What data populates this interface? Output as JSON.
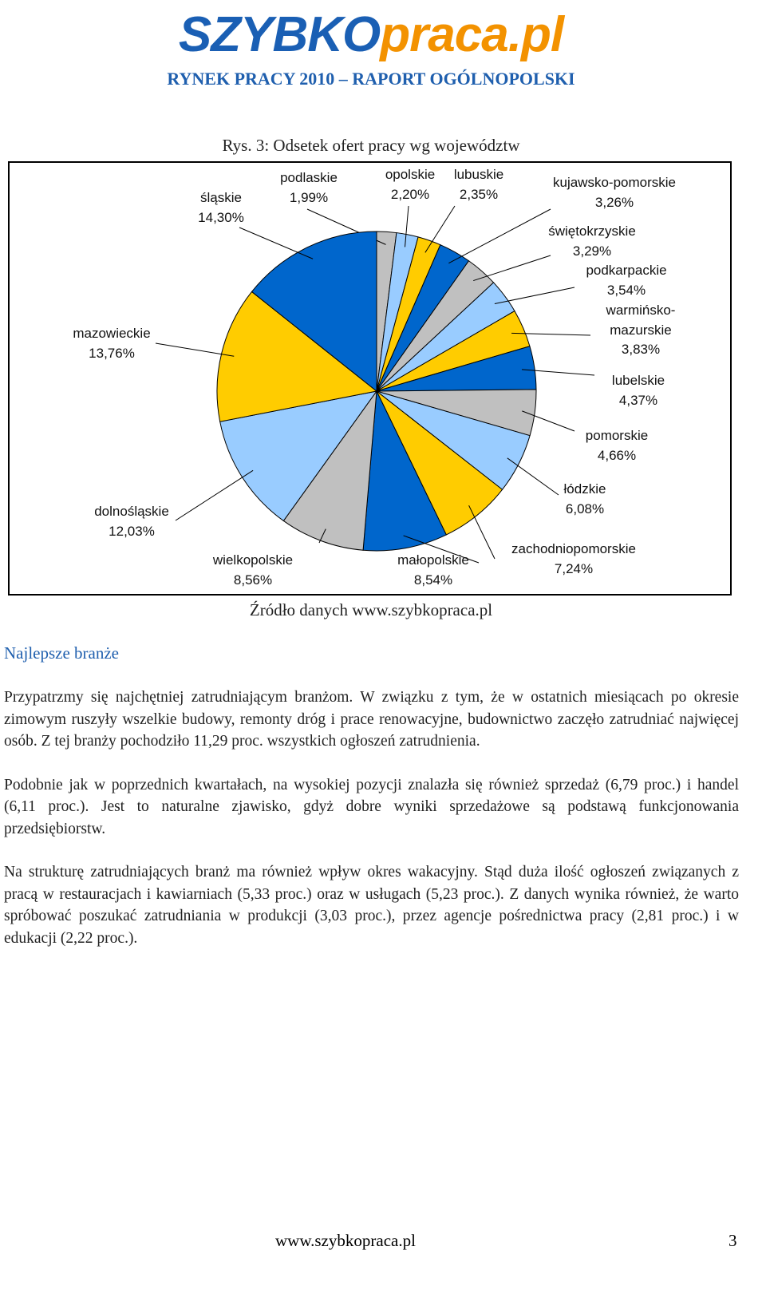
{
  "header": {
    "logo_main": "SZYBKO",
    "logo_suffix": "praca.pl",
    "title": "RYNEK PRACY 2010 – RAPORT OGÓLNOPOLSKI"
  },
  "chart_data": {
    "type": "pie",
    "title": "Rys. 3: Odsetek ofert pracy wg województw",
    "categories": [
      "podlaskie",
      "opolskie",
      "lubuskie",
      "kujawsko-pomorskie",
      "świętokrzyskie",
      "podkarpackie",
      "warmińsko-mazurskie",
      "lubelskie",
      "pomorskie",
      "łódzkie",
      "zachodniopomorskie",
      "małopolskie",
      "wielkopolskie",
      "dolnośląskie",
      "mazowieckie",
      "śląskie"
    ],
    "values": [
      1.99,
      2.2,
      2.35,
      3.26,
      3.29,
      3.54,
      3.83,
      4.37,
      4.66,
      6.08,
      7.24,
      8.54,
      8.56,
      12.03,
      13.76,
      14.3
    ],
    "value_labels": [
      "1,99%",
      "2,20%",
      "2,35%",
      "3,26%",
      "3,29%",
      "3,54%",
      "3,83%",
      "4,37%",
      "4,66%",
      "6,08%",
      "7,24%",
      "8,54%",
      "8,56%",
      "12,03%",
      "13,76%",
      "14,30%"
    ],
    "colors": [
      "#c0c0c0",
      "#99ccff",
      "#ffcc00",
      "#0066cc",
      "#c0c0c0",
      "#99ccff",
      "#ffcc00",
      "#0066cc",
      "#c0c0c0",
      "#99ccff",
      "#ffcc00",
      "#0066cc",
      "#c0c0c0",
      "#99ccff",
      "#ffcc00",
      "#0066cc"
    ],
    "source": "Źródło danych www.szybkopraca.pl"
  },
  "section": {
    "heading": "Najlepsze branże",
    "paragraphs": [
      "Przypatrzmy się najchętniej zatrudniającym branżom. W związku z tym, że w ostatnich miesiącach po okresie zimowym ruszyły wszelkie budowy, remonty dróg i prace renowacyjne, budownictwo zaczęło zatrudniać najwięcej osób. Z tej branży pochodziło 11,29 proc. wszystkich ogłoszeń zatrudnienia.",
      "Podobnie jak w poprzednich kwartałach, na wysokiej pozycji znalazła się również sprzedaż (6,79 proc.) i handel (6,11 proc.). Jest to naturalne zjawisko, gdyż dobre wyniki sprzedażowe są podstawą funkcjonowania przedsiębiorstw.",
      "Na strukturę zatrudniających branż ma również wpływ okres wakacyjny. Stąd duża ilość ogłoszeń związanych z pracą w restauracjach i kawiarniach (5,33 proc.) oraz w usługach (5,23 proc.). Z danych wynika również, że warto spróbować poszukać zatrudniania w produkcji (3,03 proc.), przez agencje pośrednictwa pracy (2,81 proc.) i w edukacji (2,22 proc.)."
    ]
  },
  "footer": {
    "url": "www.szybkopraca.pl",
    "page": "3"
  }
}
